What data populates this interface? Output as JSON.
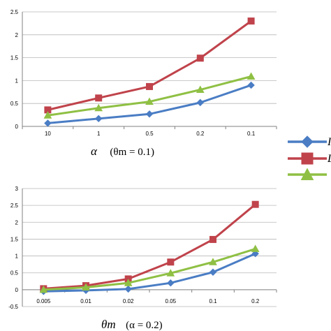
{
  "chart_data": [
    {
      "type": "line",
      "categories": [
        "10",
        "1",
        "0.5",
        "0.2",
        "0.1"
      ],
      "ylim": [
        0,
        2.5
      ],
      "yticks": [
        "0",
        "0.5",
        "1",
        "1.5",
        "2",
        "2.5"
      ],
      "grid": true,
      "series": [
        {
          "color": "#4a7dc4",
          "marker": "diamond",
          "values": [
            0.07,
            0.17,
            0.27,
            0.52,
            0.9
          ]
        },
        {
          "color": "#c0434b",
          "marker": "square",
          "values": [
            0.36,
            0.62,
            0.87,
            1.49,
            2.3
          ]
        },
        {
          "color": "#8fc044",
          "marker": "triangle",
          "values": [
            0.24,
            0.4,
            0.54,
            0.8,
            1.09
          ]
        }
      ],
      "caption_symbol": "α",
      "caption_text": "(θm = 0.1)"
    },
    {
      "type": "line",
      "categories": [
        "0.005",
        "0.01",
        "0.02",
        "0.05",
        "0.1",
        "0.2"
      ],
      "ylim": [
        -0.5,
        3
      ],
      "yticks": [
        "-0.5",
        "0",
        "0.5",
        "1",
        "1.5",
        "2",
        "2.5",
        "3"
      ],
      "grid": true,
      "series": [
        {
          "color": "#4a7dc4",
          "marker": "diamond",
          "values": [
            -0.05,
            -0.02,
            0.02,
            0.2,
            0.52,
            1.07
          ]
        },
        {
          "color": "#c0434b",
          "marker": "square",
          "values": [
            0.03,
            0.12,
            0.32,
            0.82,
            1.49,
            2.53
          ]
        },
        {
          "color": "#8fc044",
          "marker": "triangle",
          "values": [
            0.0,
            0.07,
            0.2,
            0.49,
            0.82,
            1.21
          ]
        }
      ],
      "caption_symbol": "θm",
      "caption_text": "(α = 0.2)"
    }
  ],
  "legend": [
    {
      "color": "#4a7dc4",
      "marker": "diamond",
      "label": "I"
    },
    {
      "color": "#c0434b",
      "marker": "square",
      "label": "L"
    },
    {
      "color": "#8fc044",
      "marker": "triangle",
      "label": ""
    }
  ]
}
